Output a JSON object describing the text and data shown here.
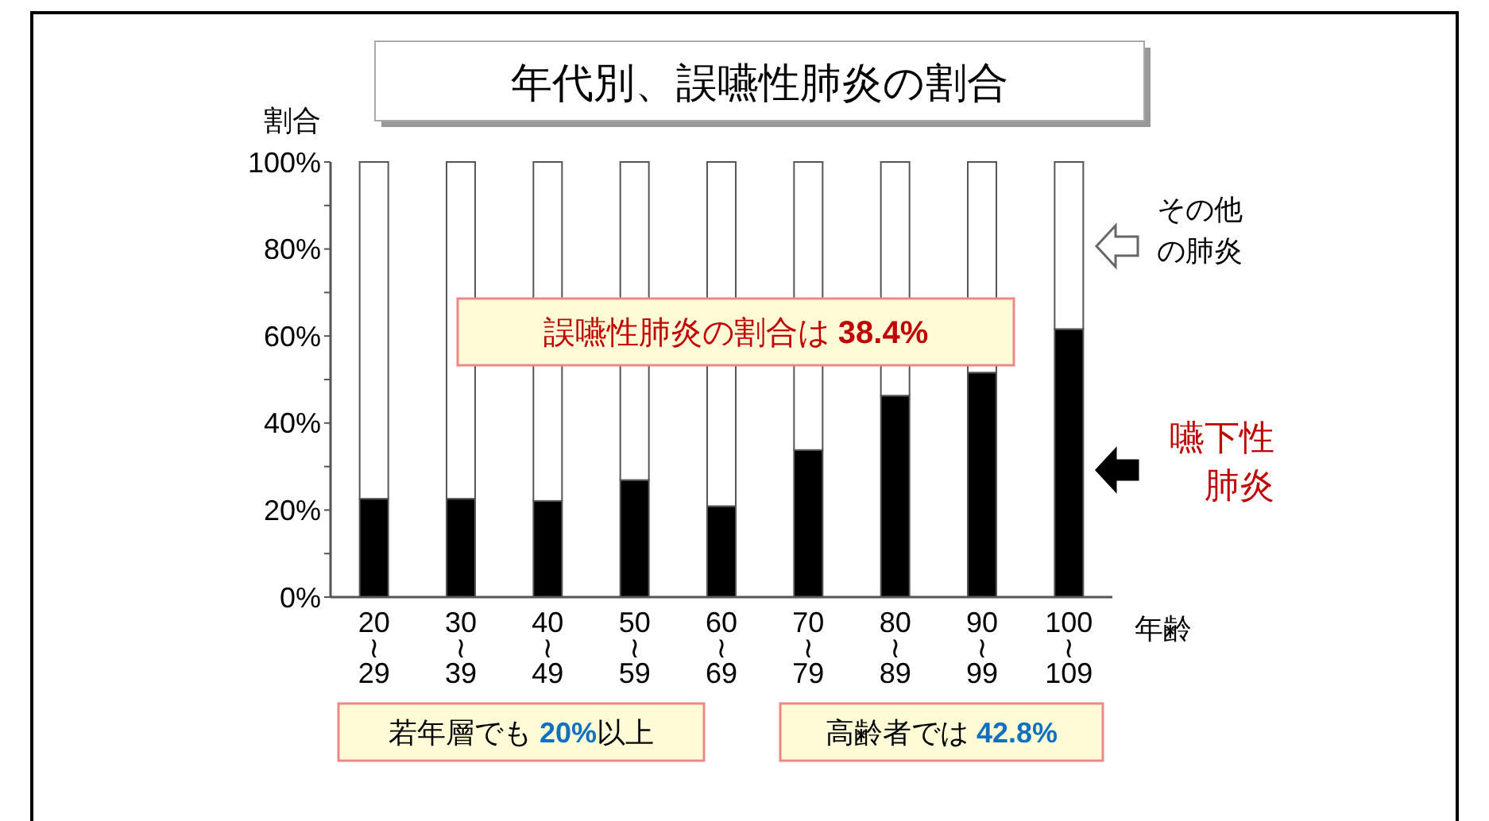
{
  "chart_data": {
    "type": "bar",
    "stacked": true,
    "title": "年代別、誤嚥性肺炎の割合",
    "ylabel": "割合",
    "xlabel": "年齢",
    "categories": [
      "20\n≀\n29",
      "30\n≀\n39",
      "40\n≀\n49",
      "50\n≀\n59",
      "60\n≀\n69",
      "70\n≀\n79",
      "80\n≀\n89",
      "90\n≀\n99",
      "100\n≀\n109"
    ],
    "series": [
      {
        "name": "嚥下性肺炎",
        "color": "#000000",
        "values": [
          22.6,
          22.6,
          22.1,
          26.9,
          20.9,
          33.8,
          46.3,
          51.6,
          61.6
        ]
      },
      {
        "name": "その他の肺炎",
        "color": "#ffffff",
        "values": [
          77.4,
          77.4,
          77.9,
          73.1,
          79.1,
          66.2,
          53.7,
          48.4,
          38.4
        ]
      }
    ],
    "ylim": [
      0,
      100
    ],
    "yticks": [
      {
        "value": 0,
        "label": "0%"
      },
      {
        "value": 10,
        "label": null
      },
      {
        "value": 20,
        "label": "20%"
      },
      {
        "value": 30,
        "label": null
      },
      {
        "value": 40,
        "label": "40%"
      },
      {
        "value": 50,
        "label": null
      },
      {
        "value": 60,
        "label": "60%"
      },
      {
        "value": 70,
        "label": null
      },
      {
        "value": 80,
        "label": "80%"
      },
      {
        "value": 90,
        "label": null
      },
      {
        "value": 100,
        "label": "100%"
      }
    ],
    "legend": "right",
    "grid": false,
    "annotations": [
      "誤嚥性肺炎の割合は 38.4%",
      "若年層でも 20%以上",
      "高齢者では 42.8%"
    ]
  }
}
